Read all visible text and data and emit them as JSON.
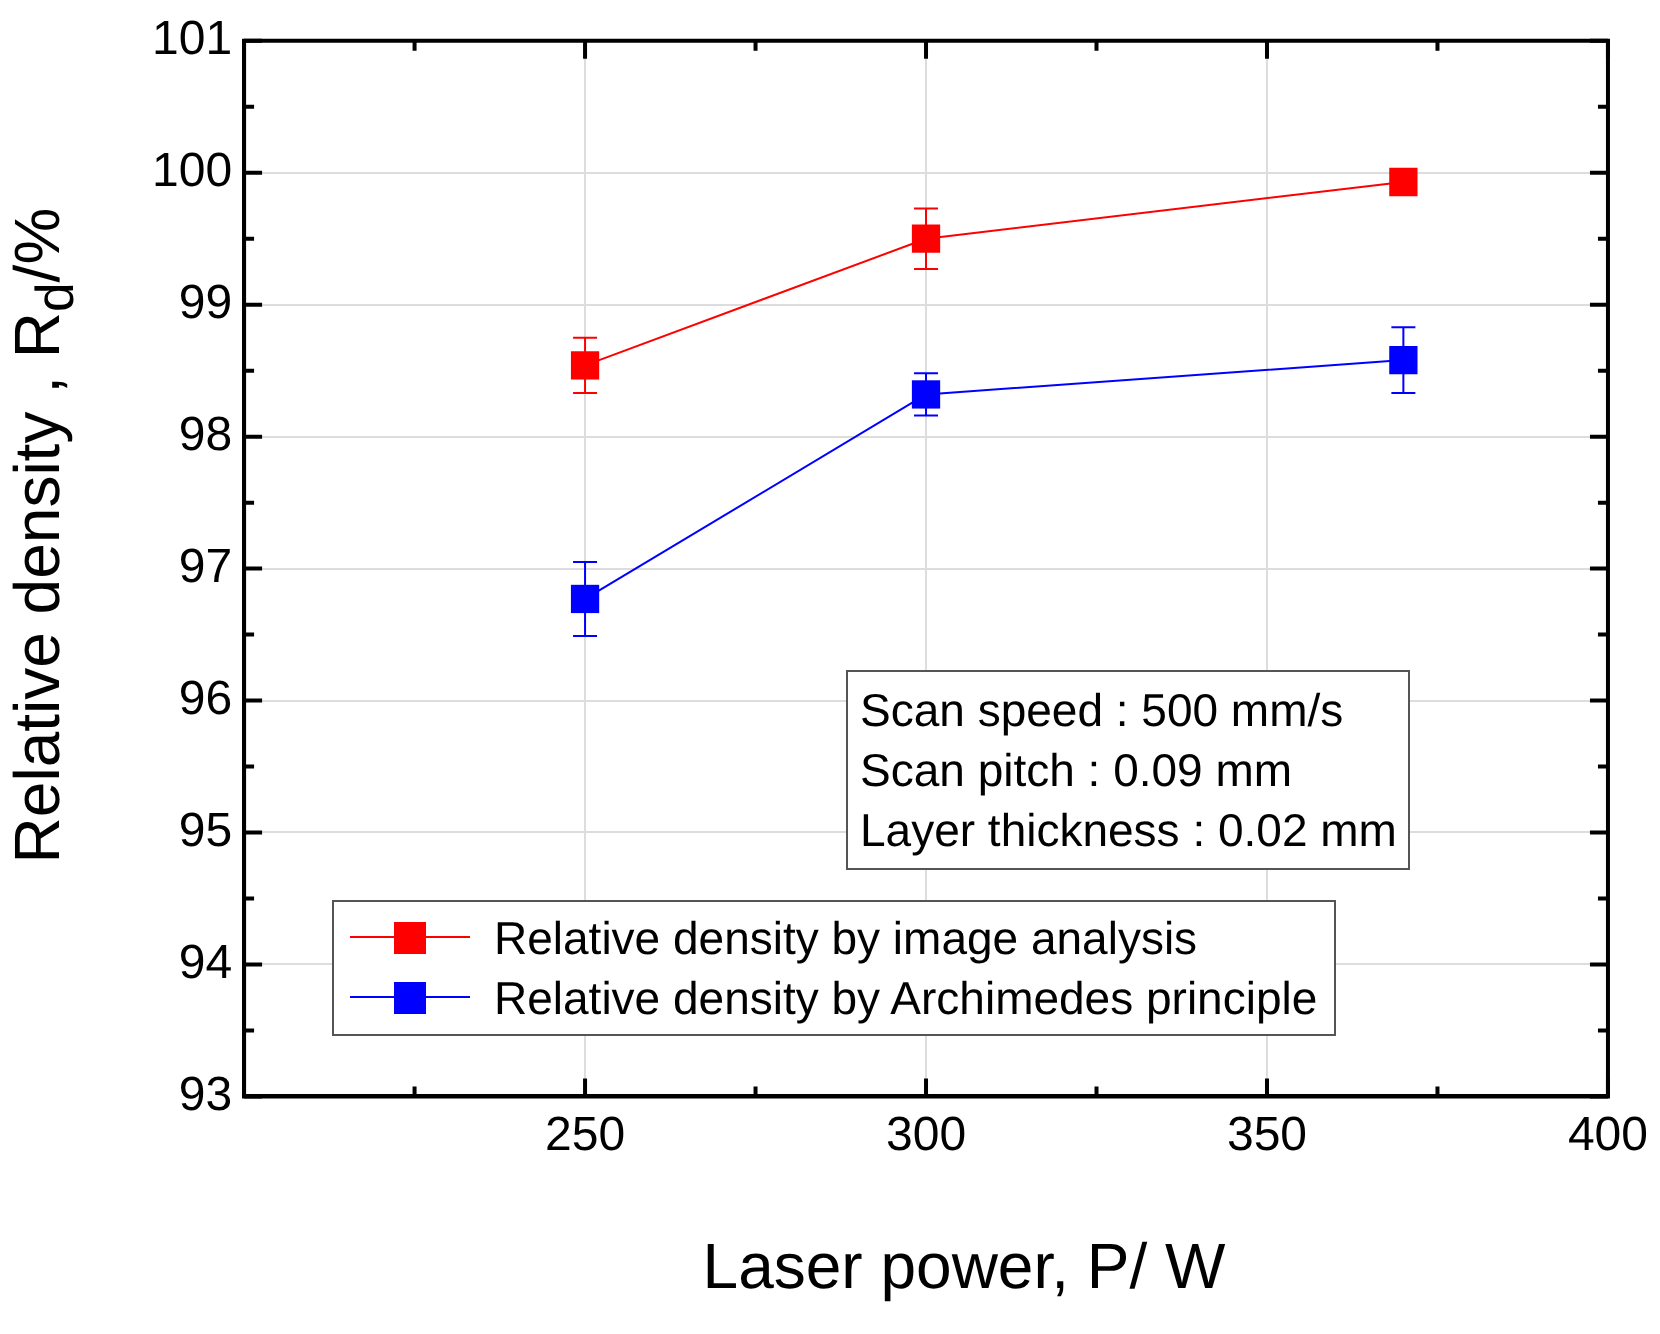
{
  "chart_data": {
    "type": "line",
    "xlabel": "Laser power, P/ W",
    "ylabel": "Relative density , R$_{d}$/%",
    "x": [
      250,
      300,
      370
    ],
    "series": [
      {
        "name": "Relative density by image analysis",
        "color": "#ff0000",
        "values": [
          98.54,
          99.5,
          99.93
        ],
        "errors": [
          0.21,
          0.23,
          null
        ]
      },
      {
        "name": "Relative density by Archimedes principle",
        "color": "#0000ff",
        "values": [
          96.77,
          98.32,
          98.58
        ],
        "errors": [
          0.28,
          0.16,
          0.25
        ]
      }
    ],
    "xlim": [
      200,
      400
    ],
    "xticks": [
      {
        "value": 225,
        "label": null
      },
      250,
      {
        "value": 275,
        "label": null
      },
      300,
      {
        "value": 325,
        "label": null
      },
      350,
      {
        "value": 375,
        "label": null
      },
      400
    ],
    "ylim": [
      93,
      101
    ],
    "yticks": [
      93,
      {
        "value": 93.5,
        "label": null
      },
      94,
      {
        "value": 94.5,
        "label": null
      },
      95,
      {
        "value": 95.5,
        "label": null
      },
      96,
      {
        "value": 96.5,
        "label": null
      },
      97,
      {
        "value": 97.5,
        "label": null
      },
      98,
      {
        "value": 98.5,
        "label": null
      },
      99,
      {
        "value": 99.5,
        "label": null
      },
      100,
      {
        "value": 100.5,
        "label": null
      },
      101
    ],
    "annotations": [
      "Scan speed : 500 mm/s",
      "Scan pitch : 0.09 mm",
      "Layer thickness : 0.02 mm"
    ],
    "grid": true,
    "legend": "bottom",
    "marker": "square",
    "line_style": "solid"
  }
}
